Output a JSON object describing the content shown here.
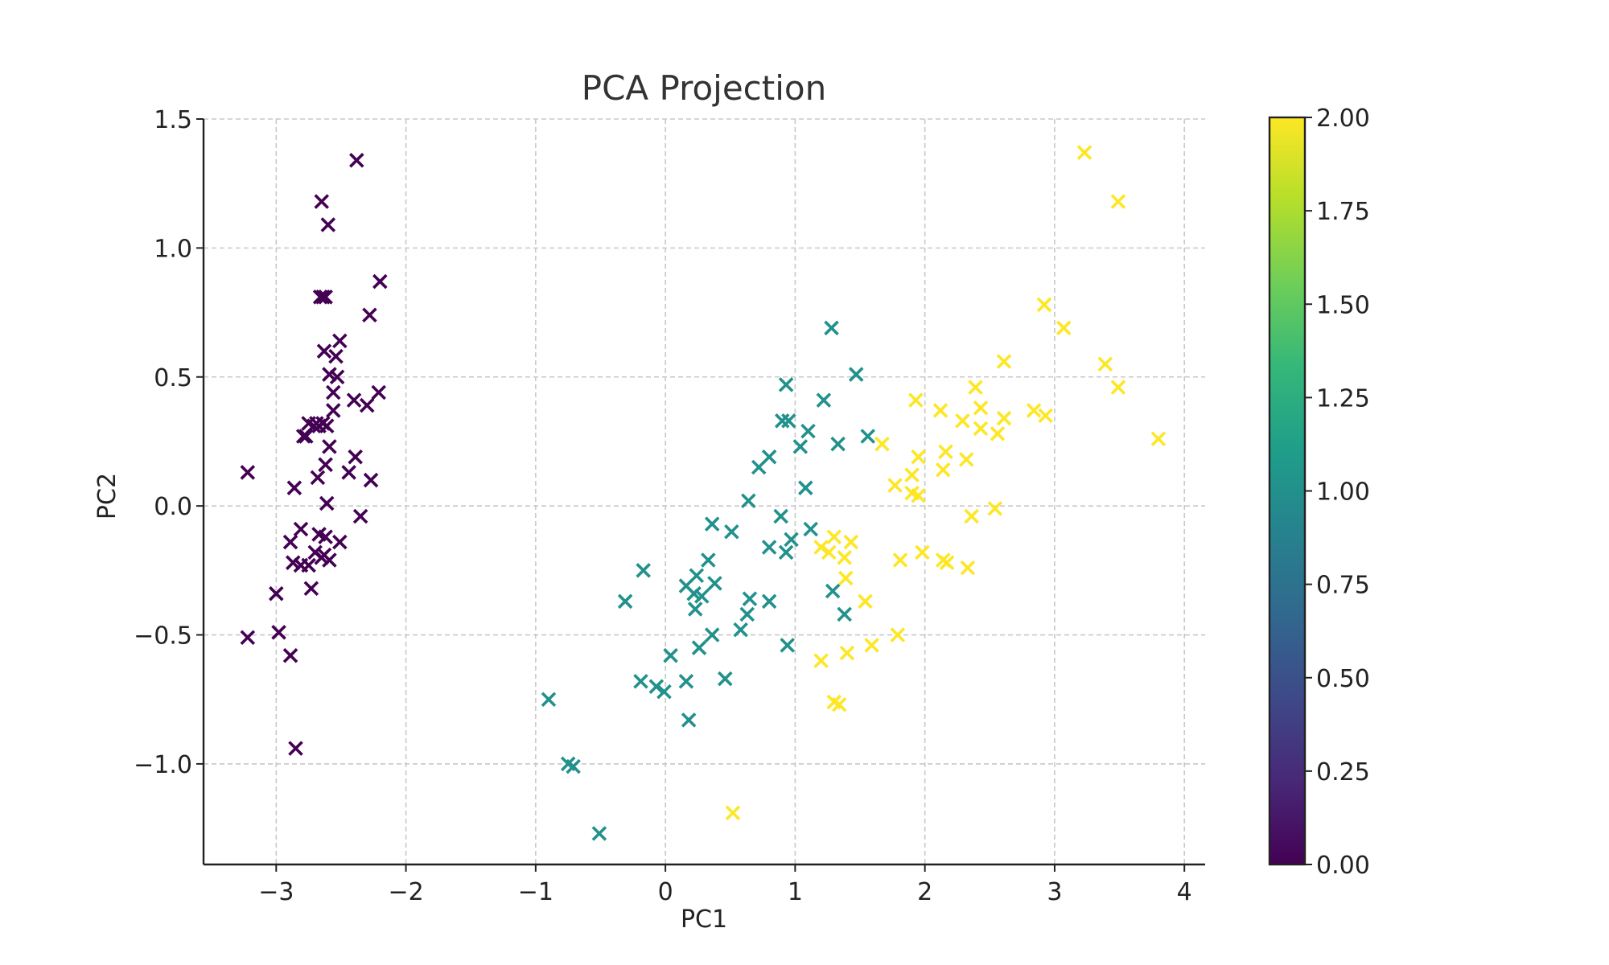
{
  "chart_data": {
    "type": "scatter",
    "title": "PCA Projection",
    "xlabel": "PC1",
    "ylabel": "PC2",
    "xlim": [
      -3.56,
      4.16
    ],
    "ylim": [
      -1.39,
      1.5
    ],
    "xticks": [
      -3,
      -2,
      -1,
      0,
      1,
      2,
      3,
      4
    ],
    "xtick_labels": [
      "−3",
      "−2",
      "−1",
      "0",
      "1",
      "2",
      "3",
      "4"
    ],
    "yticks": [
      -1.0,
      -0.5,
      0.0,
      0.5,
      1.0,
      1.5
    ],
    "ytick_labels": [
      "−1.0",
      "−0.5",
      "0.0",
      "0.5",
      "1.0",
      "1.5"
    ],
    "grid": true,
    "marker": "x",
    "colormap": "viridis",
    "colorbar": {
      "min": 0.0,
      "max": 2.0,
      "ticks": [
        0.0,
        0.25,
        0.5,
        0.75,
        1.0,
        1.25,
        1.5,
        1.75,
        2.0
      ],
      "tick_labels": [
        "0.00",
        "0.25",
        "0.50",
        "0.75",
        "1.00",
        "1.25",
        "1.50",
        "1.75",
        "2.00"
      ],
      "colors": [
        "#440154",
        "#482878",
        "#3e4989",
        "#31688e",
        "#26828e",
        "#1f9e89",
        "#35b779",
        "#6ece58",
        "#b5de2b",
        "#fde725"
      ]
    },
    "series": [
      {
        "value": 0,
        "color": "#440154",
        "points": [
          [
            -2.38,
            1.34
          ],
          [
            -2.65,
            1.18
          ],
          [
            -2.6,
            1.09
          ],
          [
            -2.2,
            0.87
          ],
          [
            -2.64,
            0.81
          ],
          [
            -2.66,
            0.81
          ],
          [
            -2.62,
            0.81
          ],
          [
            -2.28,
            0.74
          ],
          [
            -2.51,
            0.64
          ],
          [
            -2.63,
            0.6
          ],
          [
            -2.54,
            0.58
          ],
          [
            -2.59,
            0.51
          ],
          [
            -2.53,
            0.5
          ],
          [
            -2.56,
            0.44
          ],
          [
            -2.21,
            0.44
          ],
          [
            -2.4,
            0.41
          ],
          [
            -2.3,
            0.39
          ],
          [
            -2.56,
            0.37
          ],
          [
            -2.75,
            0.32
          ],
          [
            -2.69,
            0.32
          ],
          [
            -2.64,
            0.32
          ],
          [
            -2.71,
            0.31
          ],
          [
            -2.67,
            0.31
          ],
          [
            -2.61,
            0.31
          ],
          [
            -2.79,
            0.27
          ],
          [
            -2.77,
            0.27
          ],
          [
            -2.59,
            0.23
          ],
          [
            -2.39,
            0.19
          ],
          [
            -2.62,
            0.16
          ],
          [
            -3.22,
            0.13
          ],
          [
            -2.44,
            0.13
          ],
          [
            -2.68,
            0.11
          ],
          [
            -2.27,
            0.1
          ],
          [
            -2.86,
            0.07
          ],
          [
            -2.61,
            0.01
          ],
          [
            -2.35,
            -0.04
          ],
          [
            -2.81,
            -0.09
          ],
          [
            -2.67,
            -0.11
          ],
          [
            -2.62,
            -0.12
          ],
          [
            -2.89,
            -0.14
          ],
          [
            -2.51,
            -0.14
          ],
          [
            -2.7,
            -0.18
          ],
          [
            -2.63,
            -0.19
          ],
          [
            -2.65,
            -0.2
          ],
          [
            -2.59,
            -0.21
          ],
          [
            -2.87,
            -0.22
          ],
          [
            -2.81,
            -0.23
          ],
          [
            -2.75,
            -0.23
          ],
          [
            -2.73,
            -0.32
          ],
          [
            -3.0,
            -0.34
          ],
          [
            -2.98,
            -0.49
          ],
          [
            -3.22,
            -0.51
          ],
          [
            -2.89,
            -0.58
          ],
          [
            -2.85,
            -0.94
          ]
        ]
      },
      {
        "value": 1,
        "color": "#21918c",
        "points": [
          [
            1.28,
            0.69
          ],
          [
            1.47,
            0.51
          ],
          [
            0.93,
            0.47
          ],
          [
            1.22,
            0.41
          ],
          [
            0.9,
            0.33
          ],
          [
            0.95,
            0.33
          ],
          [
            1.1,
            0.29
          ],
          [
            1.56,
            0.27
          ],
          [
            1.33,
            0.24
          ],
          [
            1.04,
            0.23
          ],
          [
            0.8,
            0.19
          ],
          [
            0.72,
            0.15
          ],
          [
            1.08,
            0.07
          ],
          [
            0.64,
            0.02
          ],
          [
            0.89,
            -0.04
          ],
          [
            0.36,
            -0.07
          ],
          [
            0.51,
            -0.1
          ],
          [
            1.12,
            -0.09
          ],
          [
            0.97,
            -0.13
          ],
          [
            0.8,
            -0.16
          ],
          [
            0.93,
            -0.18
          ],
          [
            0.33,
            -0.21
          ],
          [
            -0.17,
            -0.25
          ],
          [
            0.24,
            -0.27
          ],
          [
            0.38,
            -0.3
          ],
          [
            0.16,
            -0.31
          ],
          [
            0.28,
            -0.35
          ],
          [
            0.22,
            -0.34
          ],
          [
            1.29,
            -0.33
          ],
          [
            -0.31,
            -0.37
          ],
          [
            0.65,
            -0.36
          ],
          [
            0.8,
            -0.37
          ],
          [
            0.23,
            -0.4
          ],
          [
            0.63,
            -0.42
          ],
          [
            1.38,
            -0.42
          ],
          [
            0.58,
            -0.48
          ],
          [
            0.36,
            -0.5
          ],
          [
            0.94,
            -0.54
          ],
          [
            0.26,
            -0.55
          ],
          [
            0.04,
            -0.58
          ],
          [
            -0.19,
            -0.68
          ],
          [
            0.46,
            -0.67
          ],
          [
            0.16,
            -0.68
          ],
          [
            -0.07,
            -0.7
          ],
          [
            -0.01,
            -0.72
          ],
          [
            -0.9,
            -0.75
          ],
          [
            0.18,
            -0.83
          ],
          [
            -0.75,
            -1.0
          ],
          [
            -0.71,
            -1.01
          ],
          [
            -0.51,
            -1.27
          ]
        ]
      },
      {
        "value": 2,
        "color": "#fde725",
        "points": [
          [
            3.23,
            1.37
          ],
          [
            3.49,
            1.18
          ],
          [
            2.92,
            0.78
          ],
          [
            3.07,
            0.69
          ],
          [
            2.61,
            0.56
          ],
          [
            3.39,
            0.55
          ],
          [
            3.49,
            0.46
          ],
          [
            2.39,
            0.46
          ],
          [
            1.93,
            0.41
          ],
          [
            2.12,
            0.37
          ],
          [
            2.43,
            0.38
          ],
          [
            2.84,
            0.37
          ],
          [
            2.93,
            0.35
          ],
          [
            2.61,
            0.34
          ],
          [
            2.29,
            0.33
          ],
          [
            2.43,
            0.3
          ],
          [
            2.56,
            0.28
          ],
          [
            3.8,
            0.26
          ],
          [
            1.67,
            0.24
          ],
          [
            2.16,
            0.21
          ],
          [
            1.95,
            0.19
          ],
          [
            2.32,
            0.18
          ],
          [
            2.14,
            0.14
          ],
          [
            1.9,
            0.12
          ],
          [
            1.77,
            0.08
          ],
          [
            1.9,
            0.05
          ],
          [
            1.95,
            0.04
          ],
          [
            2.54,
            -0.01
          ],
          [
            2.36,
            -0.04
          ],
          [
            1.3,
            -0.12
          ],
          [
            1.43,
            -0.14
          ],
          [
            1.2,
            -0.16
          ],
          [
            1.26,
            -0.18
          ],
          [
            1.98,
            -0.18
          ],
          [
            1.38,
            -0.2
          ],
          [
            1.81,
            -0.21
          ],
          [
            2.14,
            -0.21
          ],
          [
            2.17,
            -0.22
          ],
          [
            2.33,
            -0.24
          ],
          [
            1.39,
            -0.28
          ],
          [
            1.54,
            -0.37
          ],
          [
            1.79,
            -0.5
          ],
          [
            1.59,
            -0.54
          ],
          [
            1.4,
            -0.57
          ],
          [
            1.2,
            -0.6
          ],
          [
            1.3,
            -0.76
          ],
          [
            1.34,
            -0.77
          ],
          [
            0.52,
            -1.19
          ]
        ]
      }
    ]
  }
}
